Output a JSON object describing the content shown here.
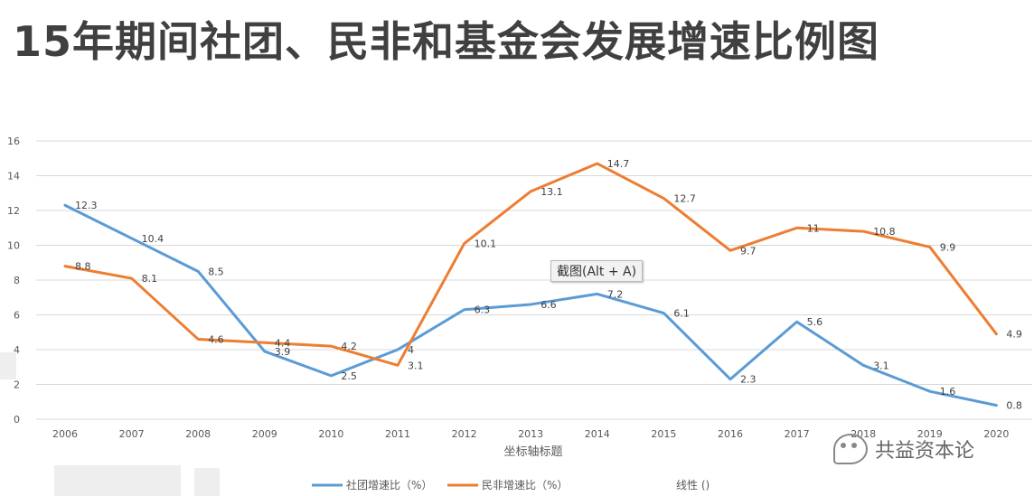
{
  "page_title": "15年期间社团、民非和基金会发展增速比例图",
  "tooltip": "截图(Alt + A)",
  "watermark": "共益资本论",
  "colors": {
    "series1": "#5b9bd5",
    "series2": "#ed7d31",
    "grid": "#d9d9d9",
    "axis_text": "#595959"
  },
  "chart_data": {
    "type": "line",
    "title": "",
    "xlabel": "坐标轴标题",
    "ylabel": "",
    "ylim": [
      0,
      16
    ],
    "yticks": [
      0,
      2,
      4,
      6,
      8,
      10,
      12,
      14,
      16
    ],
    "categories": [
      "2006",
      "2007",
      "2008",
      "2009",
      "2010",
      "2011",
      "2012",
      "2013",
      "2014",
      "2015",
      "2016",
      "2017",
      "2018",
      "2019",
      "2020"
    ],
    "series": [
      {
        "name": "社团增速比（%）",
        "values": [
          12.3,
          10.4,
          8.5,
          3.9,
          2.5,
          4,
          6.3,
          6.6,
          7.2,
          6.1,
          2.3,
          5.6,
          3.1,
          1.6,
          0.8
        ]
      },
      {
        "name": "民非增速比（%）",
        "values": [
          8.8,
          8.1,
          4.6,
          4.4,
          4.2,
          3.1,
          10.1,
          13.1,
          14.7,
          12.7,
          9.7,
          11,
          10.8,
          9.9,
          4.9
        ]
      }
    ],
    "extra_legend": "线性 ()",
    "grid": true,
    "legend_position": "bottom"
  }
}
